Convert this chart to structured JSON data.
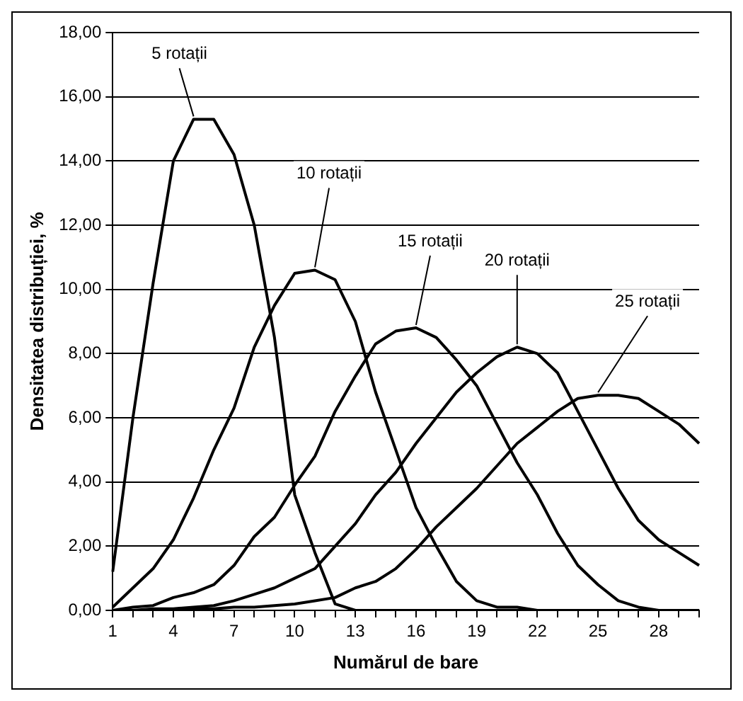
{
  "chart_data": {
    "type": "line",
    "xlabel": "Numărul de bare",
    "ylabel": "Densitatea distribuției, %",
    "categories": [
      "1",
      null,
      null,
      "4",
      null,
      null,
      "7",
      null,
      null,
      "10",
      null,
      null,
      "13",
      null,
      null,
      "16",
      null,
      null,
      "19",
      null,
      null,
      "22",
      null,
      null,
      "25",
      null,
      null,
      "28",
      null,
      null
    ],
    "series": [
      {
        "name": "5 rotații",
        "color": "#000000",
        "values": [
          1.2,
          6.0,
          10.2,
          14.0,
          15.3,
          15.3,
          14.2,
          12.0,
          8.5,
          3.6,
          1.8,
          0.2,
          0,
          0,
          0,
          0,
          0,
          0,
          0,
          0,
          0,
          0,
          0,
          0,
          0,
          0,
          0,
          0,
          0,
          0
        ]
      },
      {
        "name": "10 rotații",
        "color": "#000000",
        "values": [
          0.1,
          0.7,
          1.3,
          2.2,
          3.5,
          5.0,
          6.3,
          8.2,
          9.5,
          10.5,
          10.6,
          10.3,
          9.0,
          6.8,
          5.0,
          3.2,
          2.0,
          0.9,
          0.3,
          0.1,
          0.1,
          0,
          0,
          0,
          0,
          0,
          0,
          0,
          0,
          0
        ]
      },
      {
        "name": "15 rotații",
        "color": "#000000",
        "values": [
          0,
          0.1,
          0.15,
          0.4,
          0.55,
          0.8,
          1.4,
          2.3,
          2.9,
          3.9,
          4.8,
          6.2,
          7.3,
          8.3,
          8.7,
          8.8,
          8.5,
          7.8,
          7.0,
          5.8,
          4.6,
          3.6,
          2.4,
          1.4,
          0.8,
          0.3,
          0.1,
          0,
          0,
          0
        ]
      },
      {
        "name": "20 rotații",
        "color": "#000000",
        "values": [
          0,
          0,
          0.05,
          0.05,
          0.1,
          0.15,
          0.3,
          0.5,
          0.7,
          1.0,
          1.3,
          2.0,
          2.7,
          3.6,
          4.3,
          5.2,
          6.0,
          6.8,
          7.4,
          7.9,
          8.2,
          8.0,
          7.4,
          6.2,
          5.0,
          3.8,
          2.8,
          2.2,
          1.8,
          1.4
        ]
      },
      {
        "name": "25 rotații",
        "color": "#000000",
        "values": [
          0,
          0,
          0,
          0,
          0.05,
          0.05,
          0.1,
          0.1,
          0.15,
          0.2,
          0.3,
          0.4,
          0.7,
          0.9,
          1.3,
          1.9,
          2.6,
          3.2,
          3.8,
          4.5,
          5.2,
          5.7,
          6.2,
          6.6,
          6.7,
          6.7,
          6.6,
          6.2,
          5.8,
          5.2
        ]
      }
    ],
    "ylim": [
      0,
      18
    ],
    "yticks": [
      {
        "value": 0,
        "label": "0,00"
      },
      {
        "value": 2,
        "label": "2,00"
      },
      {
        "value": 4,
        "label": "4,00"
      },
      {
        "value": 6,
        "label": "6,00"
      },
      {
        "value": 8,
        "label": "8,00"
      },
      {
        "value": 10,
        "label": "10,00"
      },
      {
        "value": 12,
        "label": "12,00"
      },
      {
        "value": 14,
        "label": "14,00"
      },
      {
        "value": 16,
        "label": "16,00"
      },
      {
        "value": 18,
        "label": "18,00"
      }
    ],
    "grid": "y",
    "legend": false,
    "marker": "none",
    "line_style": "solid"
  }
}
